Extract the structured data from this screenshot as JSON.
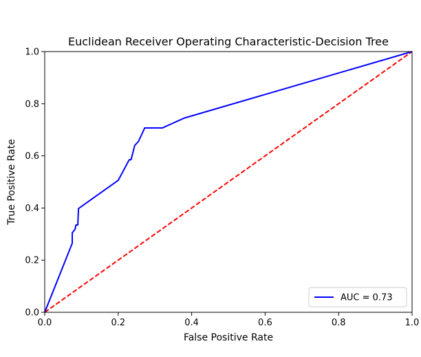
{
  "chart_data": {
    "type": "line",
    "title": "Euclidean Receiver Operating Characteristic-Decision Tree",
    "xlabel": "False Positive Rate",
    "ylabel": "True Positive Rate",
    "xlim": [
      0.0,
      1.0
    ],
    "ylim": [
      0.0,
      1.0
    ],
    "xticks": [
      "0.0",
      "0.2",
      "0.4",
      "0.6",
      "0.8",
      "1.0"
    ],
    "yticks": [
      "0.0",
      "0.2",
      "0.4",
      "0.6",
      "0.8",
      "1.0"
    ],
    "grid": false,
    "legend_position": "lower right",
    "series": [
      {
        "name": "AUC = 0.73",
        "color": "#0000ff",
        "style": "solid",
        "x": [
          0.0,
          0.075,
          0.075,
          0.078,
          0.083,
          0.085,
          0.09,
          0.092,
          0.2,
          0.23,
          0.235,
          0.245,
          0.255,
          0.265,
          0.272,
          0.32,
          0.38,
          1.0
        ],
        "y": [
          0.0,
          0.265,
          0.305,
          0.31,
          0.32,
          0.335,
          0.335,
          0.398,
          0.506,
          0.585,
          0.585,
          0.64,
          0.655,
          0.685,
          0.707,
          0.707,
          0.745,
          1.0
        ]
      },
      {
        "name": "",
        "color": "#ff0000",
        "style": "dashed",
        "x": [
          0.0,
          1.0
        ],
        "y": [
          0.0,
          1.0
        ]
      }
    ]
  }
}
